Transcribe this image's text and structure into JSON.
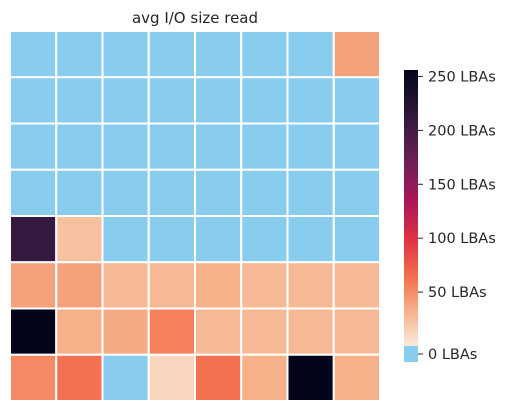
{
  "chart_data": {
    "type": "heatmap",
    "title": "avg I/O size read",
    "rows": 8,
    "cols": 8,
    "zero_color": "#88ccee",
    "vmin": 0,
    "vmax": 256,
    "colorbar_ticks": [
      {
        "value": 0,
        "label": "0 LBAs"
      },
      {
        "value": 50,
        "label": "50 LBAs"
      },
      {
        "value": 100,
        "label": "100 LBAs"
      },
      {
        "value": 150,
        "label": "150 LBAs"
      },
      {
        "value": 200,
        "label": "200 LBAs"
      },
      {
        "value": 250,
        "label": "250 LBAs"
      }
    ],
    "values": [
      [
        0,
        0,
        0,
        0,
        0,
        0,
        0,
        40
      ],
      [
        0,
        0,
        0,
        0,
        0,
        0,
        0,
        0
      ],
      [
        0,
        0,
        0,
        0,
        0,
        0,
        0,
        0
      ],
      [
        0,
        0,
        0,
        0,
        0,
        0,
        0,
        0
      ],
      [
        210,
        24,
        0,
        0,
        0,
        0,
        0,
        0
      ],
      [
        40,
        40,
        28,
        28,
        32,
        28,
        28,
        28
      ],
      [
        256,
        32,
        36,
        56,
        28,
        28,
        28,
        28
      ],
      [
        52,
        64,
        0,
        12,
        64,
        32,
        256,
        32
      ]
    ]
  }
}
